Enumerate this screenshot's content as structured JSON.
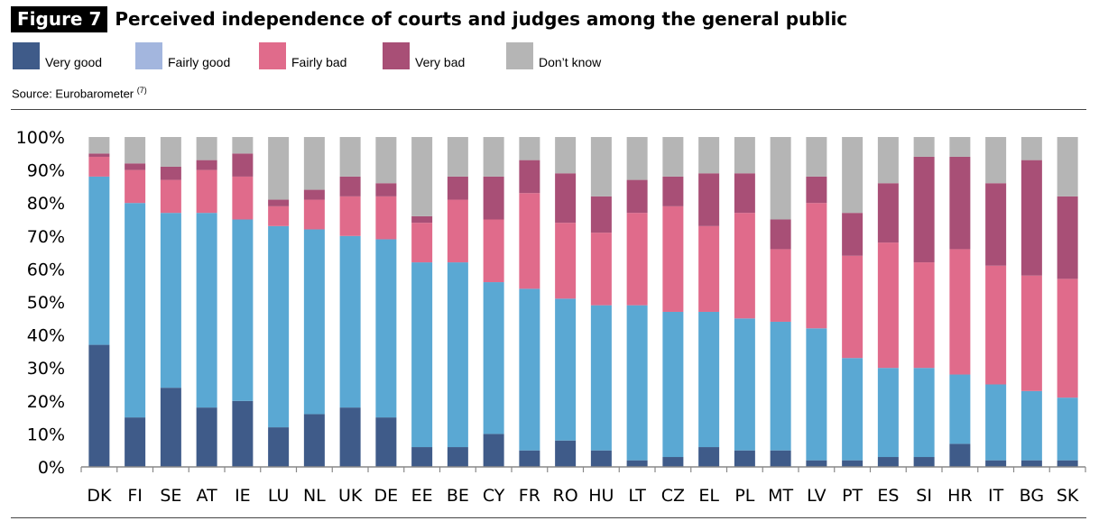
{
  "header": {
    "figure_label": "Figure 7",
    "title": "Perceived independence of courts and judges among the general public"
  },
  "source": {
    "text": "Source: Eurobarometer",
    "footnote": "(7)"
  },
  "colors": {
    "very_good": "#3f5b89",
    "fairly_good": "#5aa8d3",
    "fairly_bad": "#e06b8b",
    "very_bad": "#a84f76",
    "dont_know": "#b5b5b5",
    "legend_fairly_good": "#a3b6de"
  },
  "chart_data": {
    "type": "bar",
    "stacked": true,
    "categories": [
      "DK",
      "FI",
      "SE",
      "AT",
      "IE",
      "LU",
      "NL",
      "UK",
      "DE",
      "EE",
      "BE",
      "CY",
      "FR",
      "RO",
      "HU",
      "LT",
      "CZ",
      "EL",
      "PL",
      "MT",
      "LV",
      "PT",
      "ES",
      "SI",
      "HR",
      "IT",
      "BG",
      "SK"
    ],
    "series": [
      {
        "name": "Very good",
        "values": [
          37,
          15,
          24,
          18,
          20,
          12,
          16,
          18,
          15,
          6,
          6,
          10,
          5,
          8,
          5,
          2,
          3,
          6,
          5,
          5,
          2,
          2,
          3,
          3,
          7,
          2,
          2,
          2
        ]
      },
      {
        "name": "Fairly good",
        "values": [
          51,
          65,
          53,
          59,
          55,
          61,
          56,
          52,
          54,
          56,
          56,
          46,
          49,
          43,
          44,
          47,
          44,
          41,
          40,
          39,
          40,
          31,
          27,
          27,
          21,
          23,
          21,
          19
        ]
      },
      {
        "name": "Fairly bad",
        "values": [
          6,
          10,
          10,
          13,
          13,
          6,
          9,
          12,
          13,
          12,
          19,
          19,
          29,
          23,
          22,
          28,
          32,
          26,
          32,
          22,
          38,
          31,
          38,
          32,
          38,
          36,
          35,
          36
        ]
      },
      {
        "name": "Very bad",
        "values": [
          1,
          2,
          4,
          3,
          7,
          2,
          3,
          6,
          4,
          2,
          7,
          13,
          10,
          15,
          11,
          10,
          9,
          16,
          12,
          9,
          8,
          13,
          18,
          32,
          28,
          25,
          35,
          25
        ]
      },
      {
        "name": "Don’t know",
        "values": [
          5,
          8,
          9,
          7,
          5,
          19,
          16,
          12,
          14,
          24,
          12,
          12,
          7,
          11,
          18,
          13,
          12,
          11,
          11,
          25,
          12,
          23,
          14,
          6,
          6,
          14,
          7,
          18
        ]
      }
    ],
    "yticks": [
      "0%",
      "10%",
      "20%",
      "30%",
      "40%",
      "50%",
      "60%",
      "70%",
      "80%",
      "90%",
      "100%"
    ],
    "ylim": [
      0,
      100
    ],
    "grid": false,
    "legend_position": "top"
  }
}
